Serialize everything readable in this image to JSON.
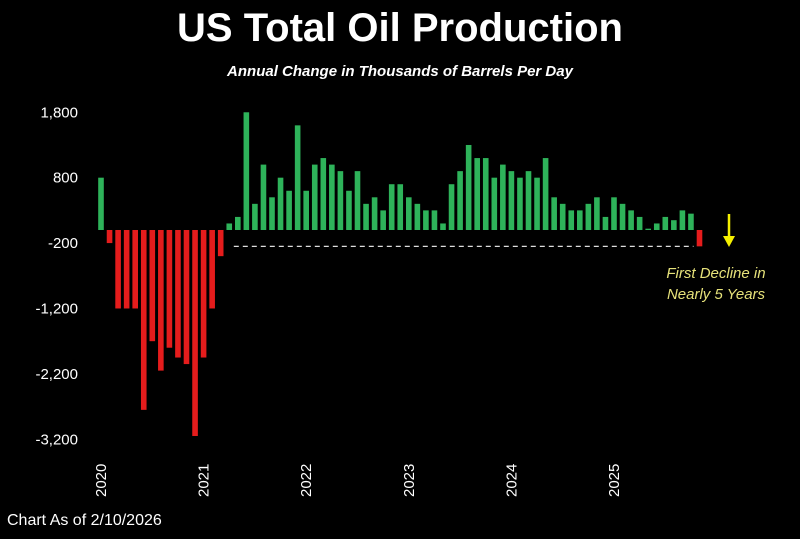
{
  "chart_data": {
    "type": "bar",
    "title": "US Total Oil Production",
    "subtitle": "Annual Change in Thousands of Barrels Per Day",
    "xlabel": "",
    "ylabel": "",
    "ylim": [
      -3200,
      1800
    ],
    "yticks": [
      1800,
      800,
      -200,
      -1200,
      -2200,
      -3200
    ],
    "ytick_labels": [
      "1,800",
      "800",
      "-200",
      "-1,200",
      "-2,200",
      "-3,200"
    ],
    "xtick_labels": [
      "2020",
      "2021",
      "2022",
      "2023",
      "2024",
      "2025"
    ],
    "x_start": "2020-01",
    "x_end": "2025-11",
    "frequency": "monthly",
    "values": [
      800,
      -200,
      -1200,
      -1200,
      -1200,
      -2750,
      -1700,
      -2150,
      -1800,
      -1950,
      -2050,
      -3150,
      -1950,
      -1200,
      -400,
      100,
      200,
      1800,
      400,
      1000,
      500,
      800,
      600,
      1600,
      600,
      1000,
      1100,
      1000,
      900,
      600,
      900,
      400,
      500,
      300,
      700,
      700,
      500,
      400,
      300,
      300,
      100,
      700,
      900,
      1300,
      1100,
      1100,
      800,
      1000,
      900,
      800,
      900,
      800,
      1100,
      500,
      400,
      300,
      300,
      400,
      500,
      200,
      500,
      400,
      300,
      200,
      20,
      100,
      200,
      150,
      300,
      250,
      -250
    ],
    "reference_line": -250,
    "colors": {
      "positive": "#2eb35a",
      "negative": "#e51c1c",
      "background": "#000000",
      "annotation": "#e6e27a",
      "arrow": "#f5f000"
    },
    "grid": false,
    "legend": "none",
    "annotation": "First Decline in Nearly 5 Years",
    "footnote": "Chart As of 2/10/2026"
  }
}
